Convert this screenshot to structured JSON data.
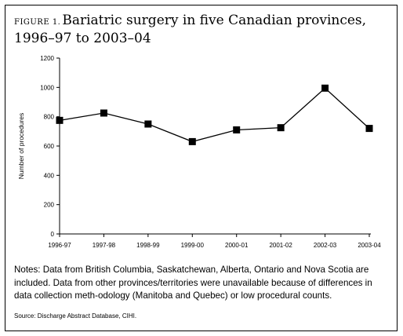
{
  "figure": {
    "label": "FIGURE 1.",
    "title": "Bariatric surgery in five Canadian provinces, 1996–97 to 2003–04"
  },
  "notes": "Notes: Data from British Columbia, Saskatchewan, Alberta, Ontario and Nova Scotia are included. Data from other provinces/territories were unavailable because of differences in data collection meth-odology (Manitoba and Quebec) or low procedural counts.",
  "source": "Source: Discharge Abstract Database, CIHI.",
  "chart_data": {
    "type": "line",
    "title": "Bariatric surgery in five Canadian provinces, 1996–97 to 2003–04",
    "categories": [
      "1996-97",
      "1997-98",
      "1998-99",
      "1999-00",
      "2000-01",
      "2001-02",
      "2002-03",
      "2003-04"
    ],
    "values": [
      775,
      825,
      750,
      630,
      710,
      725,
      995,
      720
    ],
    "xlabel": "",
    "ylabel": "Number of procedures",
    "ylim": [
      0,
      1200
    ],
    "yticks": [
      0,
      200,
      400,
      600,
      800,
      1000,
      1200
    ],
    "grid": false,
    "marker": "square",
    "color": "#000000"
  }
}
